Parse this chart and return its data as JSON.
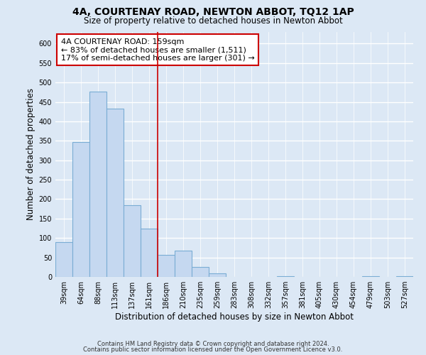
{
  "title": "4A, COURTENAY ROAD, NEWTON ABBOT, TQ12 1AP",
  "subtitle": "Size of property relative to detached houses in Newton Abbot",
  "xlabel": "Distribution of detached houses by size in Newton Abbot",
  "ylabel": "Number of detached properties",
  "bar_labels": [
    "39sqm",
    "64sqm",
    "88sqm",
    "113sqm",
    "137sqm",
    "161sqm",
    "186sqm",
    "210sqm",
    "235sqm",
    "259sqm",
    "283sqm",
    "308sqm",
    "332sqm",
    "357sqm",
    "381sqm",
    "405sqm",
    "430sqm",
    "454sqm",
    "479sqm",
    "503sqm",
    "527sqm"
  ],
  "bar_values": [
    90,
    347,
    477,
    432,
    184,
    125,
    57,
    67,
    25,
    10,
    0,
    0,
    0,
    2,
    0,
    0,
    0,
    0,
    2,
    0,
    2
  ],
  "bar_color": "#c5d8f0",
  "bar_edge_color": "#7aadd4",
  "vline_x": 5.5,
  "vline_color": "#cc0000",
  "annotation_text": "4A COURTENAY ROAD: 159sqm\n← 83% of detached houses are smaller (1,511)\n17% of semi-detached houses are larger (301) →",
  "annotation_box_color": "white",
  "annotation_box_edge": "#cc0000",
  "ylim": [
    0,
    630
  ],
  "yticks": [
    0,
    50,
    100,
    150,
    200,
    250,
    300,
    350,
    400,
    450,
    500,
    550,
    600
  ],
  "footer_line1": "Contains HM Land Registry data © Crown copyright and database right 2024.",
  "footer_line2": "Contains public sector information licensed under the Open Government Licence v3.0.",
  "background_color": "#dce8f5",
  "plot_bg_color": "#dce8f5",
  "grid_color": "white",
  "title_fontsize": 10,
  "subtitle_fontsize": 8.5,
  "axis_label_fontsize": 8.5,
  "tick_fontsize": 7,
  "annotation_fontsize": 8,
  "footer_fontsize": 6
}
